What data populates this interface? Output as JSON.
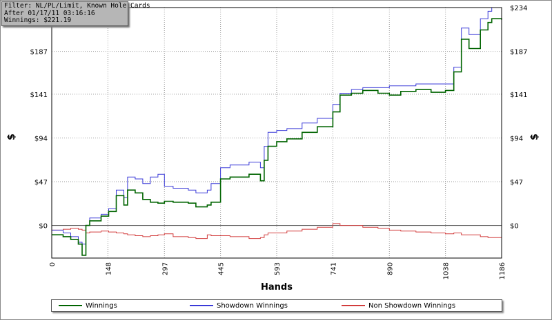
{
  "filter_box": {
    "line1": "Filter: NL/PL/Limit, Known Hole Cards",
    "line2": "After 01/17/11 03:16:16",
    "line3": "Winnings: $221.19"
  },
  "colors": {
    "winnings": "#006400",
    "showdown": "#3a3ad8",
    "non_showdown": "#d23c3c",
    "grid": "#999999",
    "zero_line": "#444444"
  },
  "chart_data": {
    "type": "line",
    "xlabel": "Hands",
    "ylabel_left": "$",
    "ylabel_right": "$",
    "xlim": [
      0,
      1186
    ],
    "ylim": [
      -35,
      234
    ],
    "x_ticks": [
      0,
      148,
      297,
      445,
      593,
      741,
      890,
      1038,
      1186
    ],
    "x_tick_labels": [
      "0",
      "148",
      "297",
      "445",
      "593",
      "741",
      "890",
      "1038",
      "1186"
    ],
    "y_ticks": [
      0,
      47,
      94,
      141,
      187,
      234
    ],
    "y_tick_labels": [
      "$0",
      "$47",
      "$94",
      "$141",
      "$187",
      "$234"
    ],
    "grid": true,
    "legend_position": "bottom",
    "series": [
      {
        "name": "Winnings",
        "color": "#006400",
        "x": [
          0,
          30,
          50,
          70,
          80,
          90,
          100,
          130,
          150,
          170,
          190,
          200,
          220,
          240,
          260,
          280,
          297,
          320,
          360,
          380,
          410,
          420,
          445,
          470,
          520,
          550,
          560,
          570,
          593,
          620,
          660,
          700,
          741,
          760,
          790,
          820,
          860,
          890,
          920,
          960,
          1000,
          1038,
          1060,
          1080,
          1100,
          1130,
          1150,
          1160,
          1186
        ],
        "y": [
          -10,
          -12,
          -15,
          -20,
          -32,
          0,
          5,
          10,
          15,
          32,
          22,
          38,
          35,
          28,
          25,
          24,
          26,
          25,
          24,
          20,
          22,
          25,
          50,
          52,
          55,
          48,
          70,
          85,
          90,
          93,
          100,
          106,
          122,
          140,
          142,
          145,
          142,
          140,
          144,
          146,
          143,
          145,
          165,
          200,
          190,
          210,
          218,
          222,
          221
        ]
      },
      {
        "name": "Showdown Winnings",
        "color": "#3a3ad8",
        "x": [
          0,
          30,
          50,
          70,
          80,
          90,
          100,
          130,
          150,
          170,
          190,
          200,
          220,
          240,
          260,
          280,
          297,
          320,
          360,
          380,
          410,
          420,
          445,
          470,
          520,
          550,
          560,
          570,
          593,
          620,
          660,
          700,
          741,
          760,
          790,
          820,
          860,
          890,
          920,
          960,
          1000,
          1038,
          1060,
          1080,
          1100,
          1130,
          1150,
          1160,
          1186
        ],
        "y": [
          -5,
          -8,
          -12,
          -18,
          -20,
          0,
          8,
          12,
          18,
          38,
          30,
          52,
          50,
          45,
          52,
          55,
          42,
          40,
          38,
          35,
          38,
          45,
          62,
          65,
          68,
          62,
          85,
          100,
          102,
          104,
          110,
          115,
          130,
          142,
          146,
          148,
          148,
          150,
          150,
          152,
          152,
          152,
          170,
          212,
          205,
          222,
          230,
          234,
          234
        ]
      },
      {
        "name": "Non Showdown Winnings",
        "color": "#d23c3c",
        "x": [
          0,
          30,
          50,
          70,
          80,
          90,
          100,
          130,
          150,
          170,
          190,
          200,
          220,
          240,
          260,
          280,
          297,
          320,
          360,
          380,
          410,
          420,
          445,
          470,
          520,
          550,
          560,
          570,
          593,
          620,
          660,
          700,
          741,
          760,
          790,
          820,
          860,
          890,
          920,
          960,
          1000,
          1038,
          1060,
          1080,
          1100,
          1130,
          1150,
          1160,
          1186
        ],
        "y": [
          -5,
          -4,
          -3,
          -4,
          -5,
          -8,
          -7,
          -6,
          -7,
          -8,
          -9,
          -10,
          -11,
          -12,
          -11,
          -10,
          -9,
          -12,
          -13,
          -14,
          -10,
          -11,
          -11,
          -12,
          -14,
          -13,
          -10,
          -8,
          -8,
          -6,
          -4,
          -2,
          2,
          0,
          0,
          -2,
          -3,
          -5,
          -6,
          -7,
          -8,
          -9,
          -8,
          -10,
          -10,
          -12,
          -13,
          -13,
          -12
        ]
      }
    ]
  }
}
